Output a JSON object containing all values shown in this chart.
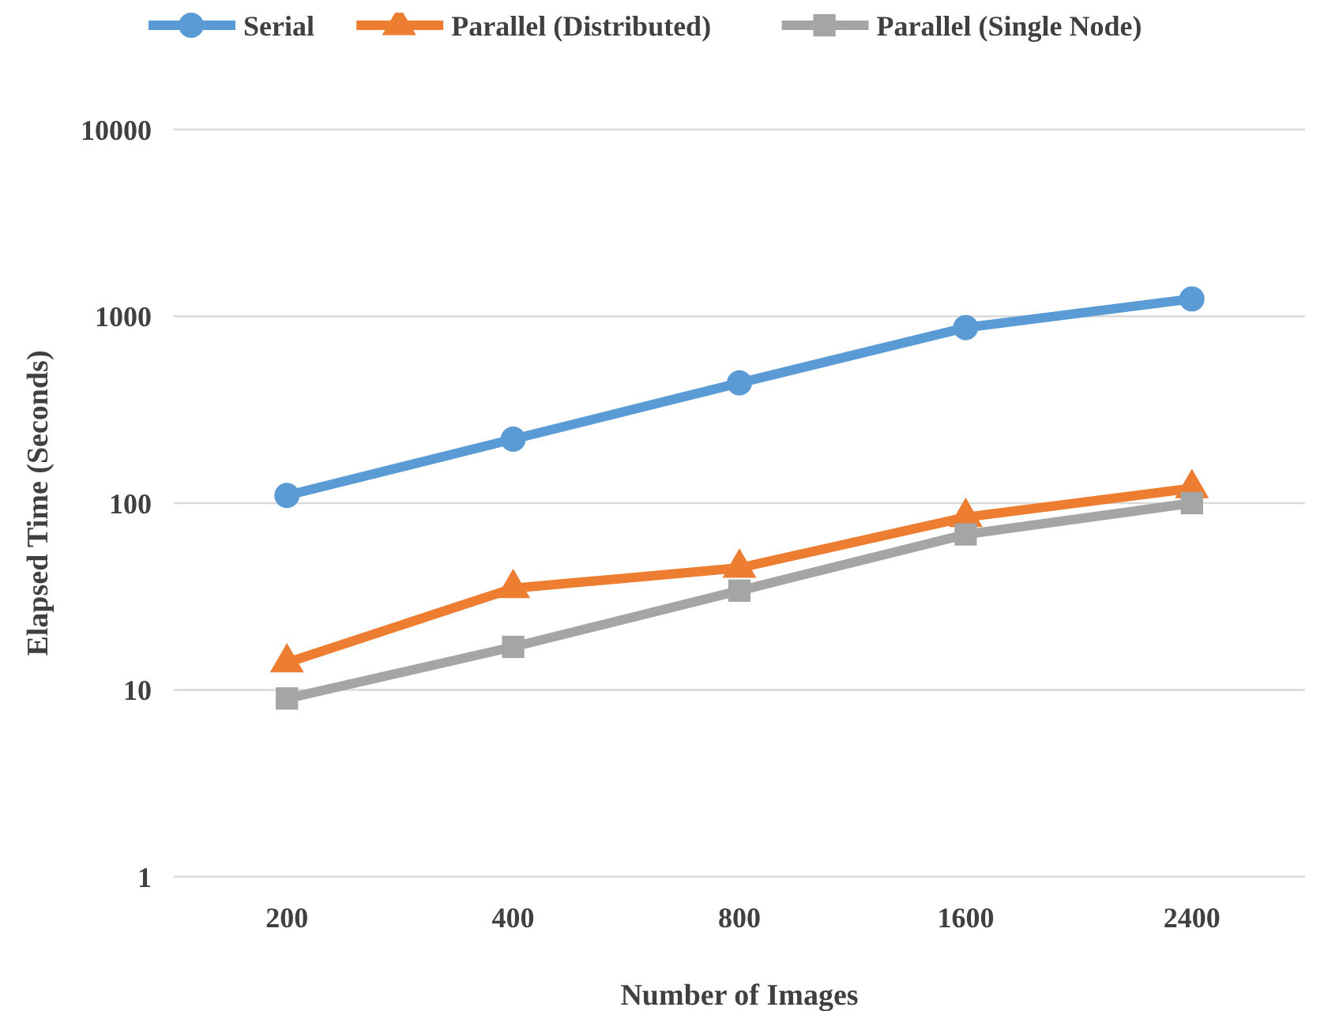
{
  "chart_data": {
    "type": "line",
    "xlabel": "Number of Images",
    "ylabel": "Elapsed Time (Seconds)",
    "categories": [
      "200",
      "400",
      "800",
      "1600",
      "2400"
    ],
    "series": [
      {
        "name": "Serial",
        "color": "#5b9bd5",
        "marker": "circle",
        "values": [
          110,
          220,
          440,
          870,
          1240
        ]
      },
      {
        "name": "Parallel (Distributed)",
        "color": "#ed7d31",
        "marker": "triangle",
        "values": [
          14,
          35,
          45,
          84,
          120
        ]
      },
      {
        "name": "Parallel (Single Node)",
        "color": "#a5a5a5",
        "marker": "square",
        "values": [
          9,
          17,
          34,
          68,
          100
        ]
      }
    ],
    "log": true,
    "ylim": [
      1,
      10000
    ],
    "yticks": [
      1,
      10,
      100,
      1000,
      10000
    ],
    "grid": "y",
    "legend": "top"
  }
}
